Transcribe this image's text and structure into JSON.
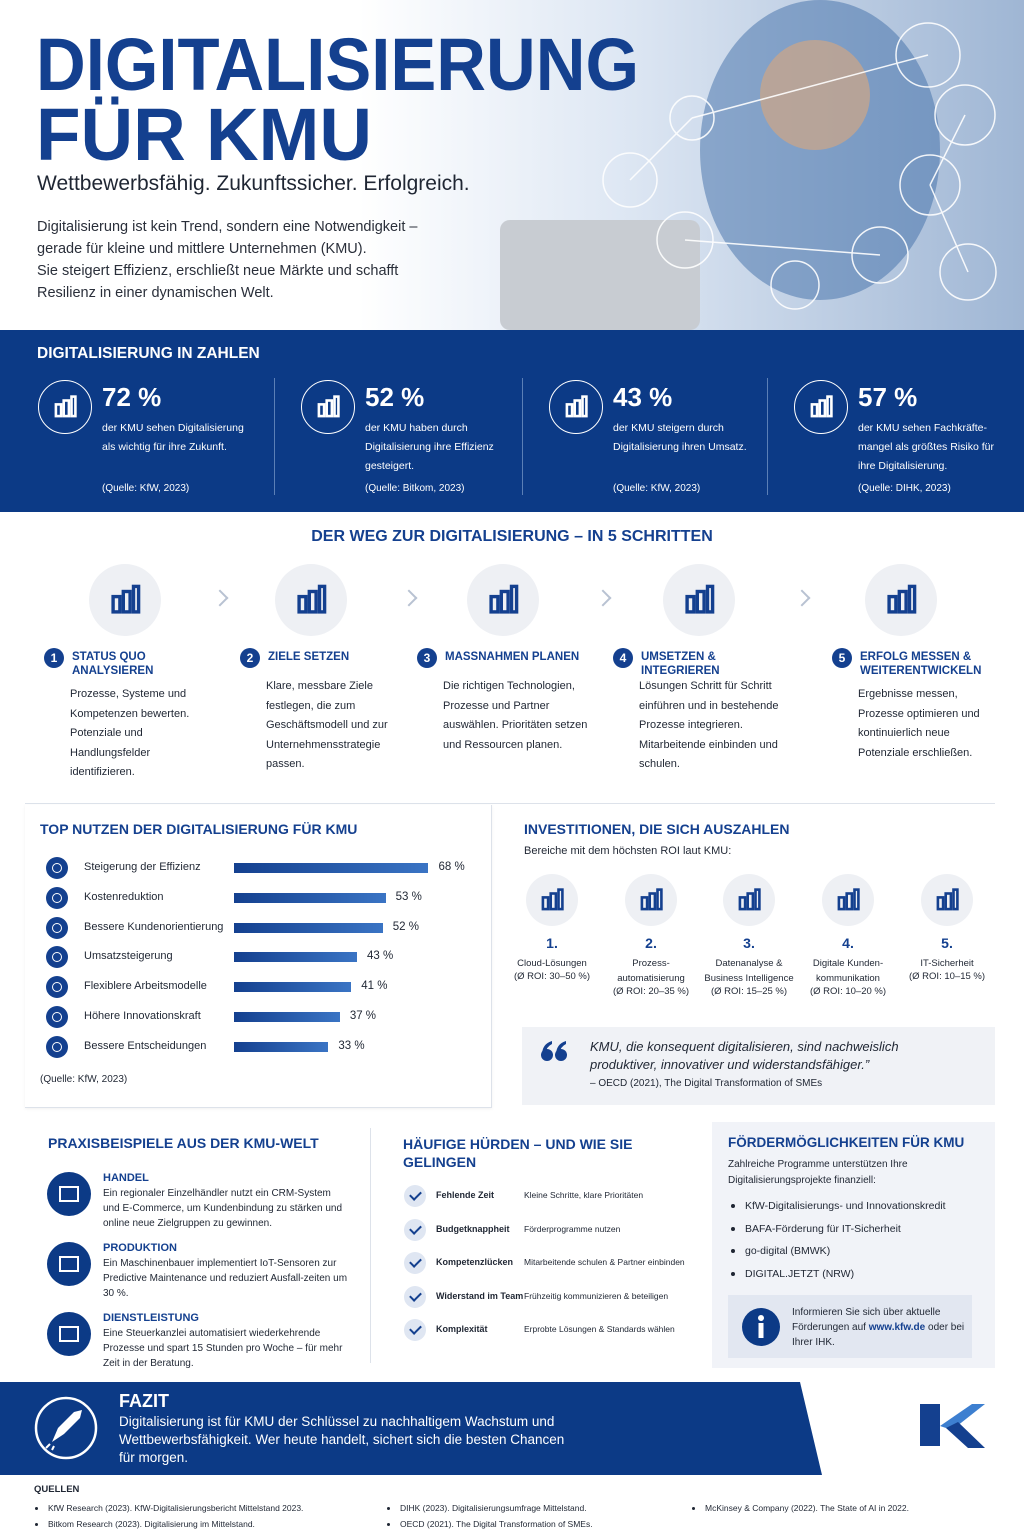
{
  "hero": {
    "title_line1": "DIGITALISIERUNG",
    "title_line2": "FÜR KMU",
    "subtitle": "Wettbewerbsfähig. Zukunftssicher. Erfolgreich.",
    "intro": [
      "Digitalisierung ist kein Trend, sondern eine Notwendigkeit –",
      "gerade für kleine und mittlere Unternehmen (KMU).",
      "Sie steigert Effizienz, erschließt neue Märkte und schafft",
      "Resilienz in einer dynamischen Welt."
    ]
  },
  "stats": {
    "title": "DIGITALISIERUNG IN ZAHLEN",
    "items": [
      {
        "value": "72 %",
        "text": "der KMU sehen Digitalisierung als wichtig für ihre Zukunft.",
        "source": "(Quelle: KfW, 2023)"
      },
      {
        "value": "52 %",
        "text": "der KMU haben durch Digitalisierung ihre Effizienz gesteigert.",
        "source": "(Quelle: Bitkom, 2023)"
      },
      {
        "value": "43 %",
        "text": "der KMU steigern durch Digitalisierung ihren Umsatz.",
        "source": "(Quelle: KfW, 2023)"
      },
      {
        "value": "57 %",
        "text": "der KMU sehen Fachkräfte-mangel als größtes Risiko für ihre Digitalisierung.",
        "source": "(Quelle: DIHK, 2023)"
      }
    ]
  },
  "steps": {
    "title": "DER WEG ZUR DIGITALISIERUNG – IN 5 SCHRITTEN",
    "items": [
      {
        "number": "1",
        "heading": "STATUS QUO ANALYSIEREN",
        "text": "Prozesse, Systeme und Kompetenzen bewerten. Potenziale und Handlungsfelder identifizieren."
      },
      {
        "number": "2",
        "heading": "ZIELE SETZEN",
        "text": "Klare, messbare Ziele festlegen, die zum Geschäftsmodell und zur Unternehmensstrategie passen."
      },
      {
        "number": "3",
        "heading": "MASSNAHMEN PLANEN",
        "text": "Die richtigen Technologien, Prozesse und Partner auswählen. Prioritäten setzen und Ressourcen planen."
      },
      {
        "number": "4",
        "heading": "UMSETZEN & INTEGRIEREN",
        "text": "Lösungen Schritt für Schritt einführen und in bestehende Prozesse integrieren. Mitarbeitende einbinden und schulen."
      },
      {
        "number": "5",
        "heading": "ERFOLG MESSEN & WEITERENTWICKELN",
        "text": "Ergebnisse messen, Prozesse optimieren und kontinuierlich neue Potenziale erschließen."
      }
    ]
  },
  "benefits": {
    "title": "TOP NUTZEN DER DIGITALISIERUNG FÜR KMU",
    "items": [
      {
        "label": "Steigerung der Effizienz",
        "value": 68,
        "value_label": "68 %"
      },
      {
        "label": "Kostenreduktion",
        "value": 53,
        "value_label": "53 %"
      },
      {
        "label": "Bessere Kundenorientierung",
        "value": 52,
        "value_label": "52 %"
      },
      {
        "label": "Umsatzsteigerung",
        "value": 43,
        "value_label": "43 %"
      },
      {
        "label": "Flexiblere Arbeitsmodelle",
        "value": 41,
        "value_label": "41 %"
      },
      {
        "label": "Höhere Innovationskraft",
        "value": 37,
        "value_label": "37 %"
      },
      {
        "label": "Bessere Entscheidungen",
        "value": 33,
        "value_label": "33 %"
      }
    ],
    "source": "(Quelle: KfW, 2023)"
  },
  "investments": {
    "title": "INVESTITIONEN, DIE SICH AUSZAHLEN",
    "subtitle": "Bereiche mit dem höchsten ROI laut KMU:",
    "items": [
      {
        "rank": "1.",
        "name": "Cloud-Lösungen",
        "roi": "(Ø ROI: 30–50 %)"
      },
      {
        "rank": "2.",
        "name": "Prozess-automatisierung",
        "roi": "(Ø ROI: 20–35 %)"
      },
      {
        "rank": "3.",
        "name": "Datenanalyse & Business Intelligence",
        "roi": "(Ø ROI: 15–25 %)"
      },
      {
        "rank": "4.",
        "name": "Digitale Kunden-kommunikation",
        "roi": "(Ø ROI: 10–20 %)"
      },
      {
        "rank": "5.",
        "name": "IT-Sicherheit",
        "roi": "(Ø ROI: 10–15 %)"
      }
    ],
    "quote": {
      "text": "KMU, die konsequent digitalisieren, sind nachweislich produktiver, innovativer und widerstandsfähiger.”",
      "attribution": "– OECD (2021), The Digital Transformation of SMEs"
    }
  },
  "examples": {
    "title": "PRAXISBEISPIELE AUS DER KMU-WELT",
    "items": [
      {
        "heading": "HANDEL",
        "text": "Ein regionaler Einzelhändler nutzt ein CRM-System und E-Commerce, um Kundenbindung zu stärken und online neue Zielgruppen zu gewinnen."
      },
      {
        "heading": "PRODUKTION",
        "text": "Ein Maschinenbauer implementiert IoT-Sensoren zur Predictive Maintenance und reduziert Ausfall-zeiten um 30 %."
      },
      {
        "heading": "DIENSTLEISTUNG",
        "text": "Eine Steuerkanzlei automatisiert wiederkehrende Prozesse und spart 15 Stunden pro Woche – für mehr Zeit in der Beratung."
      }
    ]
  },
  "hurdles": {
    "title": "HÄUFIGE HÜRDEN – UND WIE SIE GELINGEN",
    "items": [
      {
        "problem": "Fehlende Zeit",
        "solution": "Kleine Schritte, klare Prioritäten"
      },
      {
        "problem": "Budgetknappheit",
        "solution": "Förderprogramme nutzen"
      },
      {
        "problem": "Kompetenzlücken",
        "solution": "Mitarbeitende schulen & Partner einbinden"
      },
      {
        "problem": "Widerstand im Team",
        "solution": "Frühzeitig kommunizieren & beteiligen"
      },
      {
        "problem": "Komplexität",
        "solution": "Erprobte Lösungen & Standards wählen"
      }
    ]
  },
  "funding": {
    "title": "FÖRDERMÖGLICHKEITEN FÜR KMU",
    "intro": "Zahlreiche Programme unterstützen Ihre Digitalisierungsprojekte finanziell:",
    "items": [
      "KfW-Digitalisierungs- und Innovationskredit",
      "BAFA-Förderung für IT-Sicherheit",
      "go-digital (BMWK)",
      "DIGITAL.JETZT (NRW)"
    ],
    "info": {
      "text_before": "Informieren Sie sich über aktuelle Förderungen auf",
      "link": "www.kfw.de",
      "text_after": "oder bei Ihrer IHK."
    }
  },
  "conclusion": {
    "title": "FAZIT",
    "text": "Digitalisierung ist für KMU der Schlüssel zu nachhaltigem Wachstum und Wettbewerbsfähigkeit. Wer heute handelt, sichert sich die besten Chancen für morgen."
  },
  "sources": {
    "title": "QUELLEN",
    "items": [
      "KfW Research (2023). KfW-Digitalisierungsbericht Mittelstand 2023.",
      "Bitkom Research (2023). Digitalisierung im Mittelstand.",
      "DIHK (2023). Digitalisierungsumfrage Mittelstand.",
      "OECD (2021). The Digital Transformation of SMEs.",
      "McKinsey & Company (2022). The State of AI in 2022."
    ]
  }
}
